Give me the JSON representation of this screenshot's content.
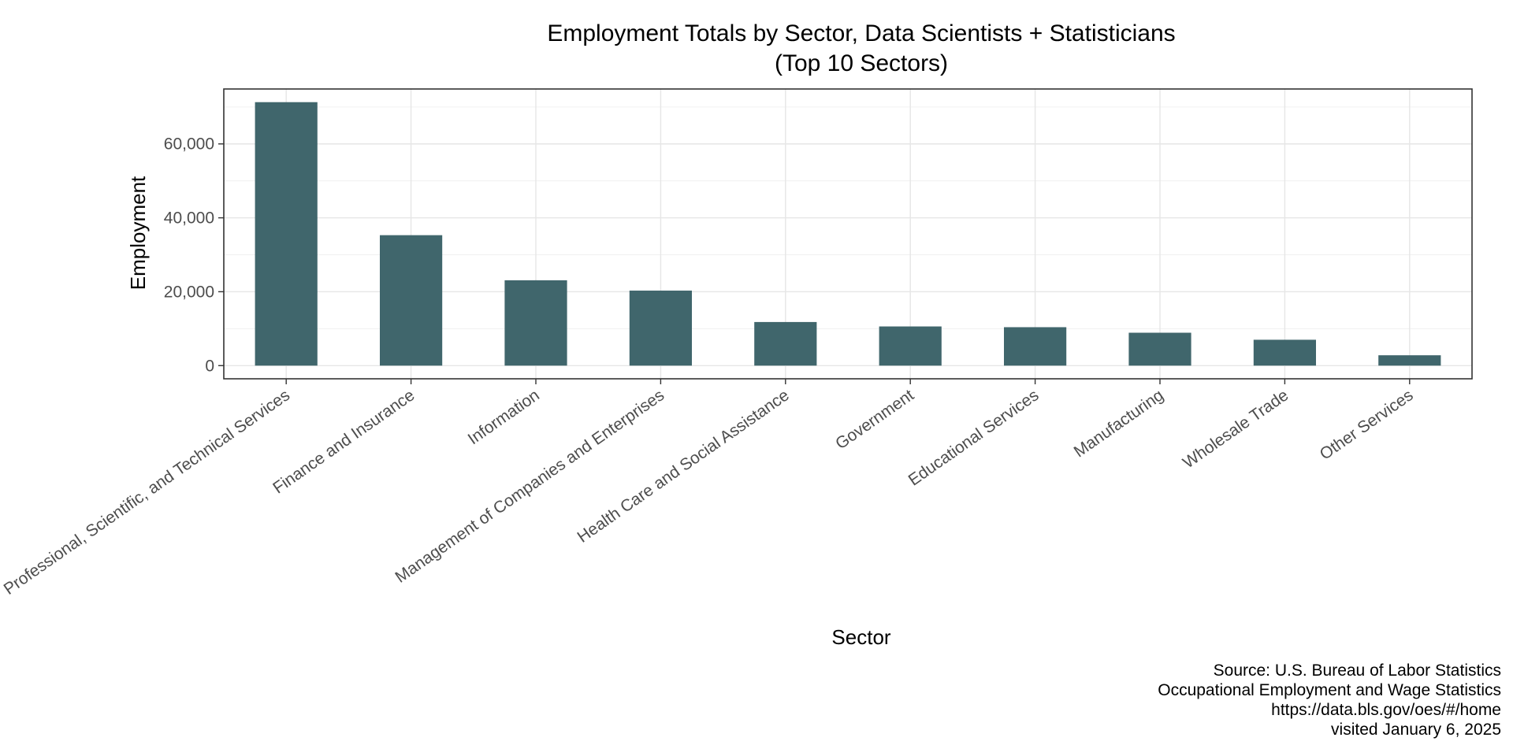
{
  "chart_data": {
    "type": "bar",
    "title": "Employment Totals by Sector, Data Scientists + Statisticians",
    "subtitle": "(Top 10 Sectors)",
    "xlabel": "Sector",
    "ylabel": "Employment",
    "categories": [
      "Professional, Scientific, and Technical Services",
      "Finance and Insurance",
      "Information",
      "Management of Companies and Enterprises",
      "Health Care and Social Assistance",
      "Government",
      "Educational Services",
      "Manufacturing",
      "Wholesale Trade",
      "Other Services"
    ],
    "values": [
      71300,
      35300,
      23100,
      20300,
      11800,
      10600,
      10400,
      8900,
      7000,
      2800
    ],
    "yticks": [
      0,
      20000,
      40000,
      60000
    ],
    "ytick_labels": [
      "0",
      "20,000",
      "40,000",
      "60,000"
    ],
    "ylim": [
      -3565,
      74865
    ],
    "grid": true,
    "bar_color": "#40666c",
    "caption": [
      "Source: U.S. Bureau of Labor Statistics",
      "Occupational Employment and Wage Statistics",
      "https://data.bls.gov/oes/#/home",
      "visited January 6, 2025"
    ]
  }
}
